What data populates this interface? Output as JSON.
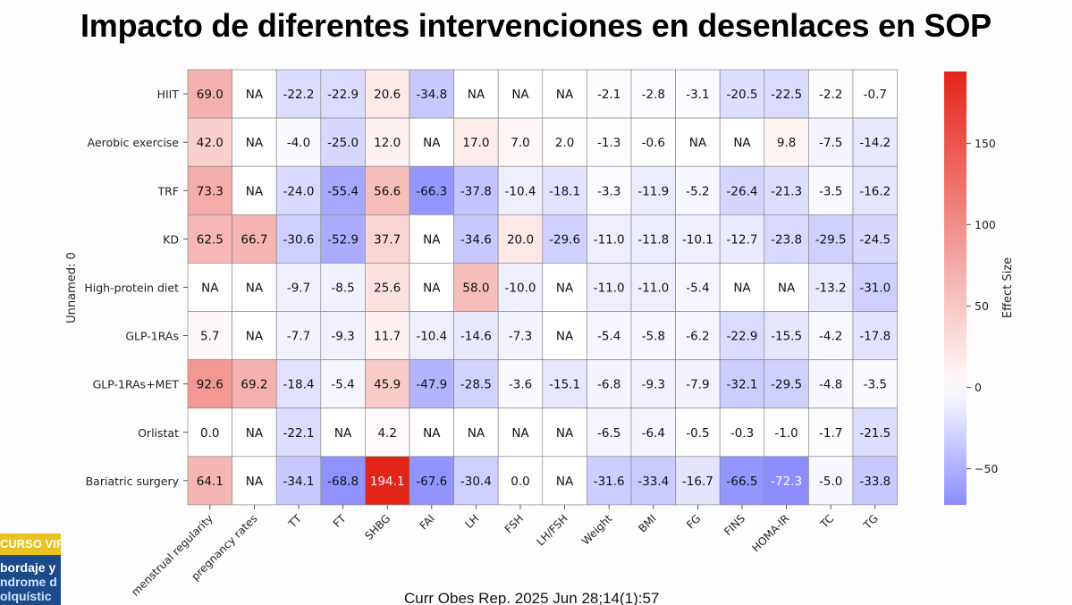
{
  "title": "Impacto de diferentes intervenciones en desenlaces en SOP",
  "citation": "Curr Obes Rep. 2025 Jun 28;14(1):57",
  "course_logo": {
    "line1": "CURSO VIR",
    "line2": "bordaje y",
    "line3": "ndrome d",
    "line4": "olquístic"
  },
  "chart_data": {
    "type": "heatmap",
    "ylabel": "Unnamed: 0",
    "colorbar_label": "Effect Size",
    "colorbar_range": [
      -72.3,
      194.1
    ],
    "colorbar_ticks": [
      150,
      100,
      50,
      0,
      -50
    ],
    "colormap": "bwr",
    "color_low": "#8c8cff",
    "color_mid": "#ffffff",
    "color_high": "#e32419",
    "na_label": "NA",
    "columns": [
      "menstrual regularity",
      "pregnancy rates",
      "TT",
      "FT",
      "SHBG",
      "FAI",
      "LH",
      "FSH",
      "LH/FSH",
      "Weight",
      "BMI",
      "FG",
      "FINS",
      "HOMA-IR",
      "TC",
      "TG"
    ],
    "rows": [
      "HIIT",
      "Aerobic exercise",
      "TRF",
      "KD",
      "High-protein diet",
      "GLP-1RAs",
      "GLP-1RAs+MET",
      "Orlistat",
      "Bariatric surgery"
    ],
    "values": [
      [
        69.0,
        null,
        -22.2,
        -22.9,
        20.6,
        -34.8,
        null,
        null,
        null,
        -2.1,
        -2.8,
        -3.1,
        -20.5,
        -22.5,
        -2.2,
        -0.7
      ],
      [
        42.0,
        null,
        -4.0,
        -25.0,
        12.0,
        null,
        17.0,
        7.0,
        2.0,
        -1.3,
        -0.6,
        null,
        null,
        9.8,
        -7.5,
        -14.2
      ],
      [
        73.3,
        null,
        -24.0,
        -55.4,
        56.6,
        -66.3,
        -37.8,
        -10.4,
        -18.1,
        -3.3,
        -11.9,
        -5.2,
        -26.4,
        -21.3,
        -3.5,
        -16.2
      ],
      [
        62.5,
        66.7,
        -30.6,
        -52.9,
        37.7,
        null,
        -34.6,
        20.0,
        -29.6,
        -11.0,
        -11.8,
        -10.1,
        -12.7,
        -23.8,
        -29.5,
        -24.5
      ],
      [
        null,
        null,
        -9.7,
        -8.5,
        25.6,
        null,
        58.0,
        -10.0,
        null,
        -11.0,
        -11.0,
        -5.4,
        null,
        null,
        -13.2,
        -31.0
      ],
      [
        5.7,
        null,
        -7.7,
        -9.3,
        11.7,
        -10.4,
        -14.6,
        -7.3,
        null,
        -5.4,
        -5.8,
        -6.2,
        -22.9,
        -15.5,
        -4.2,
        -17.8
      ],
      [
        92.6,
        69.2,
        -18.4,
        -5.4,
        45.9,
        -47.9,
        -28.5,
        -3.6,
        -15.1,
        -6.8,
        -9.3,
        -7.9,
        -32.1,
        -29.5,
        -4.8,
        -3.5
      ],
      [
        0.0,
        null,
        -22.1,
        null,
        4.2,
        null,
        null,
        null,
        null,
        -6.5,
        -6.4,
        -0.5,
        -0.3,
        -1.0,
        -1.7,
        -21.5
      ],
      [
        64.1,
        null,
        -34.1,
        -68.8,
        194.1,
        -67.6,
        -30.4,
        0.0,
        null,
        -31.6,
        -33.4,
        -16.7,
        -66.5,
        -72.3,
        -5.0,
        -33.8
      ]
    ]
  }
}
